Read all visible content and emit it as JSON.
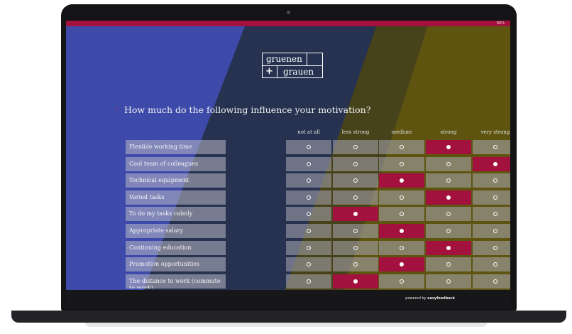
{
  "survey": {
    "progress": "80%",
    "logo": {
      "line1": "gruenen",
      "plus": "+",
      "line2": "grauen"
    },
    "question_marker": "›",
    "question": "How much do the following influence your motivation?",
    "scale": [
      "not at all",
      "less strong",
      "medium",
      "strong",
      "very strong"
    ],
    "rows": [
      {
        "label": "Flexible working time",
        "selected": 3
      },
      {
        "label": "Cool team of colleagues",
        "selected": 4
      },
      {
        "label": "Technical equipment",
        "selected": 2
      },
      {
        "label": "Varied tasks",
        "selected": 3
      },
      {
        "label": "To do my tasks calmly",
        "selected": 1
      },
      {
        "label": "Appropriate salary",
        "selected": 2
      },
      {
        "label": "Continuing education",
        "selected": 3
      },
      {
        "label": "Promotion opportunities",
        "selected": 2
      },
      {
        "label": "The distance to work (commute to work)",
        "selected": 1
      }
    ],
    "footer": {
      "prefix": "powered by",
      "brand": "easyfeedback"
    }
  },
  "colors": {
    "accent": "#a3123f",
    "panel_blue": "#3e4aa9",
    "panel_olive": "#5e5410",
    "screen_dark": "#26324f"
  }
}
